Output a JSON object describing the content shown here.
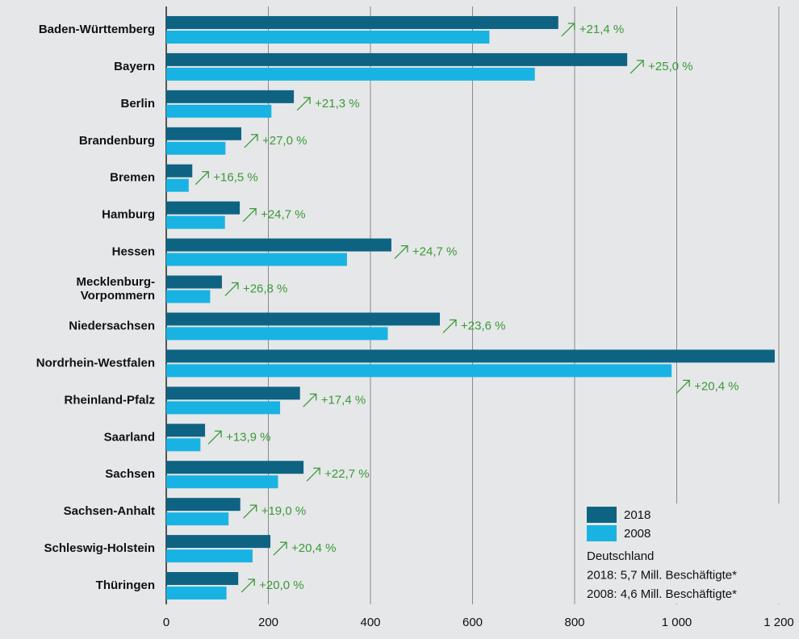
{
  "chart_data": {
    "type": "bar",
    "orientation": "horizontal",
    "categories": [
      "Baden-Württemberg",
      "Bayern",
      "Berlin",
      "Brandenburg",
      "Bremen",
      "Hamburg",
      "Hessen",
      "Mecklenburg-\nVorpommern",
      "Niedersachsen",
      "Nordrhein-Westfalen",
      "Rheinland-Pfalz",
      "Saarland",
      "Sachsen",
      "Sachsen-Anhalt",
      "Schleswig-Holstein",
      "Thüringen"
    ],
    "series": [
      {
        "name": "2018",
        "color": "#0e6383",
        "values": [
          768,
          903,
          250,
          147,
          51,
          144,
          441,
          109,
          536,
          1192,
          262,
          76,
          269,
          145,
          204,
          141
        ]
      },
      {
        "name": "2008",
        "color": "#19b3e3",
        "values": [
          633,
          722,
          206,
          116,
          44,
          115,
          354,
          86,
          434,
          990,
          223,
          67,
          219,
          122,
          169,
          118
        ]
      }
    ],
    "annotations": [
      "+21,4 %",
      "+25,0 %",
      "+21,3 %",
      "+27,0 %",
      "+16,5 %",
      "+24,7 %",
      "+24,7 %",
      "+26,8 %",
      "+23,6 %",
      "+20,4 %",
      "+17,4 %",
      "+13,9 %",
      "+22,7 %",
      "+19,0 %",
      "+20,4 %",
      "+20,0 %"
    ],
    "annotation_color": "#3a9a3a",
    "xlim": [
      0,
      1200
    ],
    "xticks": [
      0,
      200,
      400,
      600,
      800,
      {
        "value": 1000,
        "label": "1 000"
      },
      {
        "value": 1200,
        "label": "1 200"
      }
    ],
    "grid": true,
    "legend": "lower right",
    "note": [
      "Deutschland",
      "2018: 5,7 Mill. Beschäftigte*",
      "2008: 4,6 Mill. Beschäftigte*"
    ]
  }
}
